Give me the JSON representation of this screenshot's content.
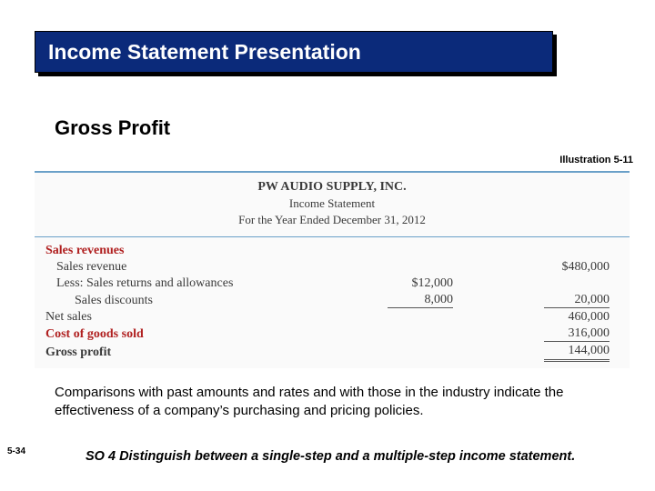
{
  "titleBar": {
    "text": "Income Statement Presentation"
  },
  "subtitle": "Gross Profit",
  "illustrationLabel": "Illustration 5-11",
  "statement": {
    "company": "PW AUDIO SUPPLY, INC.",
    "docTitle": "Income Statement",
    "period": "For the Year Ended December 31, 2012",
    "rows": {
      "salesRevenuesHeader": "Sales revenues",
      "salesRevenue": {
        "label": "Sales revenue",
        "amount": "$480,000"
      },
      "returns": {
        "label": "Less: Sales returns and allowances",
        "amount": "$12,000"
      },
      "discounts": {
        "label": "Sales discounts",
        "amount": "8,000",
        "subtotal": "20,000"
      },
      "netSales": {
        "label": "Net sales",
        "amount": "460,000"
      },
      "cogs": {
        "label": "Cost of goods sold",
        "amount": "316,000"
      },
      "grossProfit": {
        "label": "Gross profit",
        "amount": "144,000"
      }
    }
  },
  "explain": "Comparisons with past amounts and rates and with those in the industry indicate the effectiveness of a company’s purchasing and pricing policies.",
  "pageNumber": "5-34",
  "so": {
    "label": "SO 4",
    "text": "  Distinguish between a single-step and a multiple-step income statement."
  }
}
